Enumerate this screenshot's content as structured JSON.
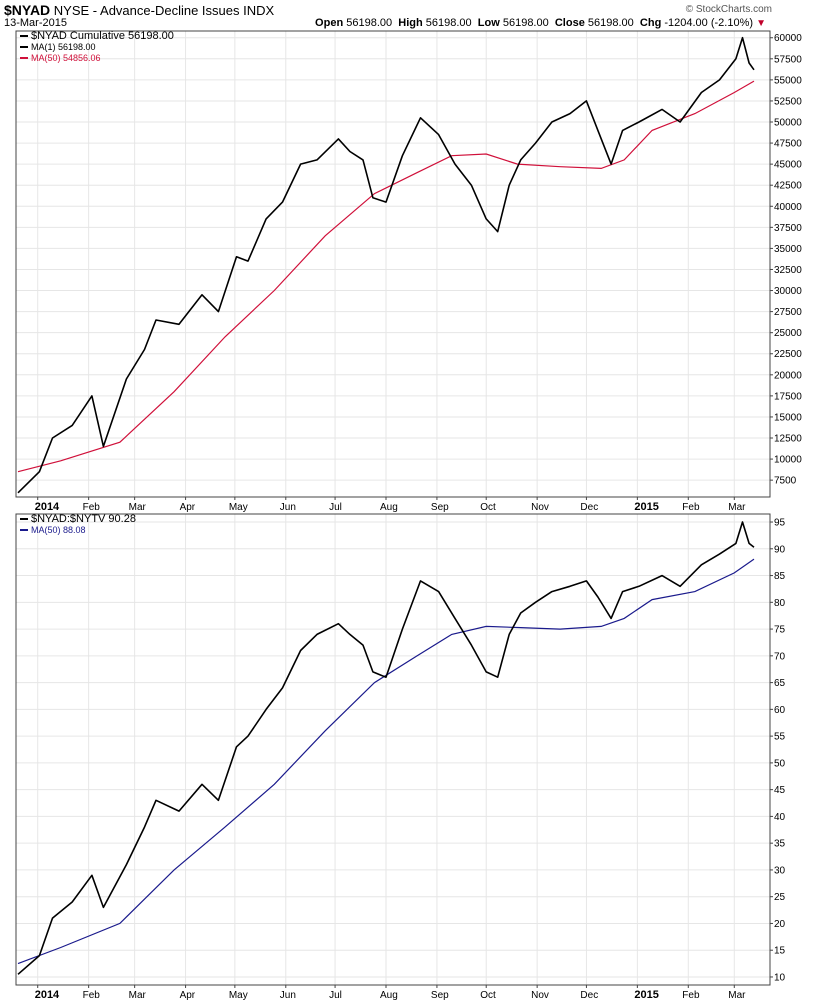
{
  "header": {
    "symbol": "$NYAD",
    "description": "NYSE - Advance-Decline Issues INDX",
    "date": "13-Mar-2015",
    "brand": "© StockCharts.com",
    "open_label": "Open",
    "open_value": "56198.00",
    "high_label": "High",
    "high_value": "56198.00",
    "low_label": "Low",
    "low_value": "56198.00",
    "close_label": "Close",
    "close_value": "56198.00",
    "chg_label": "Chg",
    "chg_value": "-1204.00 (-2.10%)",
    "chg_icon": "down-triangle-icon"
  },
  "colors": {
    "price": "#000000",
    "ma_red": "#d0103a",
    "ma_blue": "#1a1a8c",
    "grid": "#e6e6e6"
  },
  "chart_data": [
    {
      "type": "line",
      "legend": [
        "$NYAD Cumulative 56198.00",
        "MA(1) 56198.00",
        "MA(50) 54856.06"
      ],
      "x_tick_labels": [
        "2014",
        "Feb",
        "Mar",
        "Apr",
        "May",
        "Jun",
        "Jul",
        "Aug",
        "Sep",
        "Oct",
        "Nov",
        "Dec",
        "2015",
        "Feb",
        "Mar"
      ],
      "y_ticks": [
        7500,
        10000,
        12500,
        15000,
        17500,
        20000,
        22500,
        25000,
        27500,
        30000,
        32500,
        35000,
        37500,
        40000,
        42500,
        45000,
        47500,
        50000,
        52500,
        55000,
        57500,
        60000
      ],
      "ylim": [
        5500,
        60800
      ],
      "grid": true,
      "legend_position": "top-left",
      "x_dates": [
        "2013-12-20",
        "2014-01-02",
        "2014-01-10",
        "2014-01-22",
        "2014-02-03",
        "2014-02-10",
        "2014-02-24",
        "2014-03-07",
        "2014-03-14",
        "2014-03-28",
        "2014-04-11",
        "2014-04-21",
        "2014-05-02",
        "2014-05-09",
        "2014-05-20",
        "2014-05-30",
        "2014-06-10",
        "2014-06-20",
        "2014-07-03",
        "2014-07-10",
        "2014-07-18",
        "2014-07-24",
        "2014-08-01",
        "2014-08-11",
        "2014-08-22",
        "2014-09-02",
        "2014-09-12",
        "2014-09-22",
        "2014-10-01",
        "2014-10-08",
        "2014-10-15",
        "2014-10-22",
        "2014-10-31",
        "2014-11-10",
        "2014-11-21",
        "2014-12-01",
        "2014-12-08",
        "2014-12-16",
        "2014-12-23",
        "2015-01-02",
        "2015-01-16",
        "2015-01-27",
        "2015-02-09",
        "2015-02-20",
        "2015-03-02",
        "2015-03-06",
        "2015-03-10",
        "2015-03-13"
      ],
      "series": [
        {
          "name": "$NYAD Cumulative",
          "values": [
            6000,
            8500,
            12500,
            14000,
            17500,
            11500,
            19500,
            23000,
            26500,
            26000,
            29500,
            27500,
            34000,
            33500,
            38500,
            40500,
            45000,
            45500,
            48000,
            46500,
            45500,
            41000,
            40500,
            46000,
            50500,
            48500,
            45000,
            42500,
            38500,
            37000,
            42500,
            45500,
            47500,
            50000,
            51000,
            52500,
            49000,
            45000,
            49000,
            50000,
            51500,
            50000,
            53500,
            55000,
            57500,
            60000,
            57000,
            56198
          ]
        },
        {
          "name": "MA(50)",
          "x_dates": [
            "2013-12-20",
            "2014-01-15",
            "2014-02-20",
            "2014-03-25",
            "2014-04-25",
            "2014-05-25",
            "2014-06-25",
            "2014-07-25",
            "2014-08-20",
            "2014-09-10",
            "2014-10-01",
            "2014-10-20",
            "2014-11-15",
            "2014-12-10",
            "2014-12-24",
            "2015-01-10",
            "2015-02-05",
            "2015-03-01",
            "2015-03-13"
          ],
          "values": [
            8500,
            9800,
            12000,
            18000,
            24500,
            30000,
            36500,
            41500,
            44000,
            46000,
            46200,
            45000,
            44700,
            44500,
            45500,
            49000,
            51000,
            53500,
            54856
          ]
        }
      ]
    },
    {
      "type": "line",
      "legend": [
        "$NYAD:$NYTV 90.28",
        "MA(50) 88.08"
      ],
      "x_tick_labels": [
        "2014",
        "Feb",
        "Mar",
        "Apr",
        "May",
        "Jun",
        "Jul",
        "Aug",
        "Sep",
        "Oct",
        "Nov",
        "Dec",
        "2015",
        "Feb",
        "Mar"
      ],
      "y_ticks": [
        10,
        15,
        20,
        25,
        30,
        35,
        40,
        45,
        50,
        55,
        60,
        65,
        70,
        75,
        80,
        85,
        90,
        95
      ],
      "ylim": [
        8.5,
        96.5
      ],
      "grid": true,
      "legend_position": "top-left",
      "x_dates": [
        "2013-12-20",
        "2014-01-02",
        "2014-01-10",
        "2014-01-22",
        "2014-02-03",
        "2014-02-10",
        "2014-02-24",
        "2014-03-07",
        "2014-03-14",
        "2014-03-28",
        "2014-04-11",
        "2014-04-21",
        "2014-05-02",
        "2014-05-09",
        "2014-05-20",
        "2014-05-30",
        "2014-06-10",
        "2014-06-20",
        "2014-07-03",
        "2014-07-10",
        "2014-07-18",
        "2014-07-24",
        "2014-08-01",
        "2014-08-11",
        "2014-08-22",
        "2014-09-02",
        "2014-09-12",
        "2014-09-22",
        "2014-10-01",
        "2014-10-08",
        "2014-10-15",
        "2014-10-22",
        "2014-10-31",
        "2014-11-10",
        "2014-11-21",
        "2014-12-01",
        "2014-12-08",
        "2014-12-16",
        "2014-12-23",
        "2015-01-02",
        "2015-01-16",
        "2015-01-27",
        "2015-02-09",
        "2015-02-20",
        "2015-03-02",
        "2015-03-06",
        "2015-03-10",
        "2015-03-13"
      ],
      "series": [
        {
          "name": "$NYAD:$NYTV",
          "values": [
            10.5,
            14,
            21,
            24,
            29,
            23,
            31,
            38,
            43,
            41,
            46,
            43,
            53,
            55,
            60,
            64,
            71,
            74,
            76,
            74,
            72,
            67,
            66,
            75,
            84,
            82,
            77,
            72,
            67,
            66,
            74,
            78,
            80,
            82,
            83,
            84,
            81,
            77,
            82,
            83,
            85,
            83,
            87,
            89,
            91,
            95,
            91,
            90.28
          ]
        },
        {
          "name": "MA(50)",
          "x_dates": [
            "2013-12-20",
            "2014-01-15",
            "2014-02-20",
            "2014-03-25",
            "2014-04-25",
            "2014-05-25",
            "2014-06-25",
            "2014-07-25",
            "2014-08-20",
            "2014-09-10",
            "2014-10-01",
            "2014-10-20",
            "2014-11-15",
            "2014-12-10",
            "2014-12-24",
            "2015-01-10",
            "2015-02-05",
            "2015-03-01",
            "2015-03-13"
          ],
          "values": [
            12.5,
            15.5,
            20,
            30,
            38,
            46,
            56,
            65,
            70,
            74,
            75.5,
            75.3,
            75,
            75.5,
            77,
            80.5,
            82,
            85.5,
            88.08
          ]
        }
      ]
    }
  ]
}
